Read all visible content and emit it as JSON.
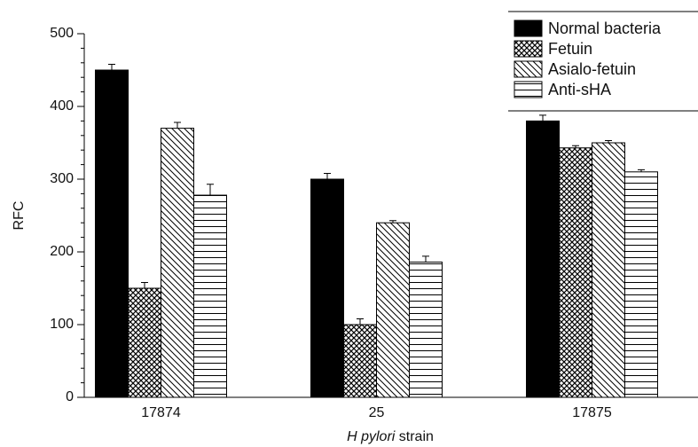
{
  "chart_data": {
    "type": "bar",
    "ylabel": "RFC",
    "xlabel_italic": "H pylori",
    "xlabel": " strain",
    "categories": [
      "17874",
      "25",
      "17875"
    ],
    "series": [
      {
        "name": "Normal bacteria",
        "color": "#000000",
        "pattern": "solid",
        "values": [
          450,
          300,
          380
        ],
        "errors": [
          8,
          8,
          8
        ]
      },
      {
        "name": "Fetuin",
        "color": "#000000",
        "pattern": "crosshatch",
        "values": [
          150,
          100,
          343
        ],
        "errors": [
          8,
          8,
          3
        ]
      },
      {
        "name": "Asialo-fetuin",
        "color": "#000000",
        "pattern": "diagonal",
        "values": [
          370,
          240,
          350
        ],
        "errors": [
          8,
          3,
          3
        ]
      },
      {
        "name": "Anti-sHA",
        "color": "#000000",
        "pattern": "horizontal",
        "values": [
          278,
          186,
          310
        ],
        "errors": [
          15,
          8,
          3
        ]
      }
    ],
    "ylim": [
      0,
      500
    ],
    "yticks": [
      0,
      100,
      200,
      300,
      400,
      500
    ],
    "yminorticks": [
      20,
      40,
      60,
      80,
      120,
      140,
      160,
      180,
      220,
      240,
      260,
      280,
      320,
      340,
      360,
      380,
      420,
      440,
      460,
      480
    ],
    "legend": "top-right"
  }
}
